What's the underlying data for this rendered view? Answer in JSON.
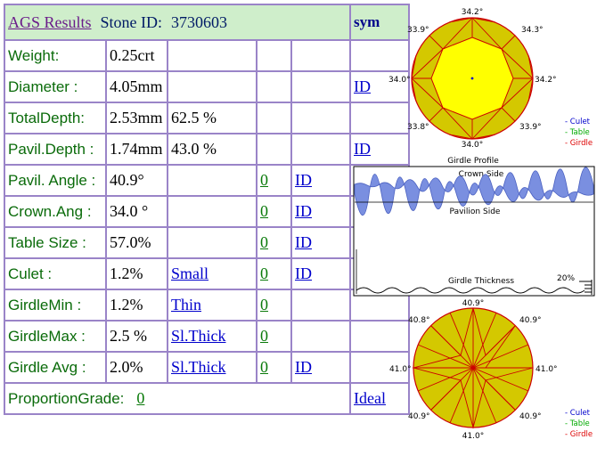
{
  "header": {
    "title": "AGS Results",
    "stone_id_label": "Stone ID:",
    "stone_id": "3730603",
    "sym": "sym"
  },
  "rows": [
    {
      "label": "Weight:",
      "value": "0.25crt",
      "value2": "",
      "grade": "",
      "grade_link": "",
      "id_link": ""
    },
    {
      "label": "Diameter :",
      "value": "4.05mm",
      "value2": "",
      "grade": "",
      "grade_link": "",
      "id_link": "ID"
    },
    {
      "label": "TotalDepth:",
      "value": "2.53mm",
      "value2": "62.5 %",
      "grade": "",
      "grade_link": "",
      "id_link": ""
    },
    {
      "label": "Pavil.Depth :",
      "value": "1.74mm",
      "value2": "43.0 %",
      "grade": "",
      "grade_link": "",
      "id_link": "ID"
    },
    {
      "label": "Pavil. Angle :",
      "value": "40.9°",
      "value2": "",
      "grade": "",
      "grade_link": "0",
      "id_link": "ID "
    },
    {
      "label": "Crown.Ang :",
      "value": "34.0 °",
      "value2": "",
      "grade": "",
      "grade_link": "0",
      "id_link": "ID"
    },
    {
      "label": "Table Size :",
      "value": "57.0%",
      "value2": "",
      "grade": "",
      "grade_link": "0",
      "id_link": "ID"
    },
    {
      "label": "Culet :",
      "value": "1.2%",
      "value2": "",
      "grade": "Small",
      "grade_link": "0",
      "id_link": "ID"
    },
    {
      "label": "GirdleMin :",
      "value": "1.2%",
      "value2": "",
      "grade": "Thin",
      "grade_link": "0",
      "id_link": ""
    },
    {
      "label": "GirdleMax :",
      "value": "2.5 %",
      "value2": "",
      "grade": "Sl.Thick ",
      "grade_link": "0",
      "id_link": ""
    },
    {
      "label": "Girdle Avg :",
      "value": "2.0%",
      "value2": "",
      "grade": "Sl.Thick ",
      "grade_link": "0 ",
      "id_link": "ID "
    }
  ],
  "footer": {
    "label": "ProportionGrade:",
    "grade_link": "0",
    "result": "Ideal "
  },
  "crown_diagram": {
    "angles": {
      "top": "34.2°",
      "top_right": "34.3°",
      "top_left": "33.9°",
      "left": "34.0°",
      "right": "34.2°",
      "bottom_left": "33.8°",
      "bottom_right": "33.9°",
      "bottom": "34.0°"
    },
    "legend": [
      "- Culet",
      "- Table",
      "- Girdle"
    ]
  },
  "profile": {
    "title": "Girdle Profile",
    "crown_side": "Crown Side",
    "pavilion_side": "Pavilion Side",
    "girdle_thickness": "Girdle Thickness",
    "percent": "20%"
  },
  "pavilion_diagram": {
    "angles": {
      "top": "40.9°",
      "top_left": "40.8°",
      "top_right": "40.9°",
      "left": "41.0°",
      "right": "41.0°",
      "bottom_left": "40.9°",
      "bottom_right": "40.9°",
      "bottom": "41.0°"
    },
    "legend": [
      "- Culet",
      "- Table",
      "- Girdle"
    ]
  },
  "colors": {
    "culet": "#0000cc",
    "table": "#00aa00",
    "girdle": "#dd0000",
    "stone_fill": "#d4c800",
    "table_fill": "#ffff00",
    "facet_line": "#cc0000"
  }
}
